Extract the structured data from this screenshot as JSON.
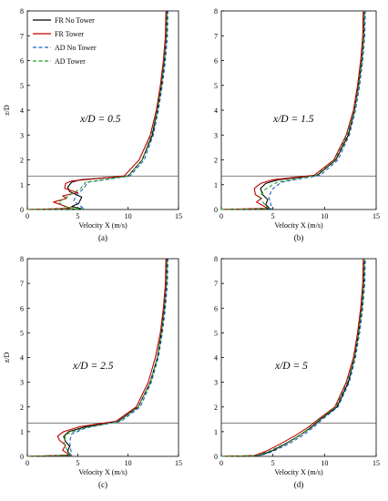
{
  "chart_data": [
    {
      "type": "line",
      "panel_label": "(a)",
      "annotation": "x/D = 0.5",
      "xlabel": "Velocity X (m/s)",
      "ylabel": "z/D",
      "xlim": [
        0,
        15
      ],
      "ylim": [
        0,
        8
      ],
      "xticks": [
        "0",
        "5",
        "10",
        "15"
      ],
      "yticks": [
        "0",
        "1",
        "2",
        "3",
        "4",
        "5",
        "6",
        "7",
        "8"
      ],
      "reference_line": {
        "y": 1.35
      },
      "legend": {
        "position": "top-left",
        "entries": [
          "FR No Tower",
          "FR Tower",
          "AD No Tower",
          "AD Tower"
        ]
      },
      "series": [
        {
          "name": "FR No Tower",
          "color": "#000000",
          "dash": "solid",
          "x": [
            0.0,
            5.5,
            4.4,
            5.1,
            5.4,
            4.2,
            4.0,
            4.4,
            5.3,
            10.0,
            11.4,
            12.4,
            12.9,
            13.3,
            13.6,
            13.8,
            13.85
          ],
          "y": [
            0.0,
            0.02,
            0.12,
            0.25,
            0.5,
            0.72,
            0.9,
            1.1,
            1.2,
            1.35,
            2.0,
            3.0,
            4.0,
            5.0,
            6.0,
            7.0,
            8.0
          ]
        },
        {
          "name": "FR Tower",
          "color": "#c00000",
          "dash": "solid",
          "x": [
            0.0,
            4.3,
            2.6,
            3.9,
            3.5,
            5.0,
            3.7,
            3.8,
            4.4,
            9.6,
            11.1,
            12.2,
            12.8,
            13.2,
            13.5,
            13.7,
            13.75
          ],
          "y": [
            0.0,
            0.05,
            0.3,
            0.45,
            0.55,
            0.68,
            0.85,
            1.05,
            1.15,
            1.35,
            2.0,
            3.0,
            4.0,
            5.0,
            6.0,
            7.0,
            8.0
          ]
        },
        {
          "name": "AD No Tower",
          "color": "#1f5fbf",
          "dash": "dashed",
          "x": [
            0.0,
            5.7,
            5.2,
            4.6,
            4.9,
            5.6,
            6.0,
            10.2,
            11.6,
            12.5,
            13.0,
            13.4,
            13.7,
            13.9,
            13.95
          ],
          "y": [
            0.0,
            0.02,
            0.15,
            0.35,
            0.6,
            0.85,
            1.1,
            1.35,
            2.0,
            3.0,
            4.0,
            5.0,
            6.0,
            7.0,
            8.0
          ]
        },
        {
          "name": "AD Tower",
          "color": "#22a022",
          "dash": "dashed",
          "x": [
            0.0,
            5.5,
            3.6,
            3.1,
            4.1,
            5.3,
            5.8,
            10.0,
            11.4,
            12.3,
            12.9,
            13.3,
            13.6,
            13.8,
            13.85
          ],
          "y": [
            0.0,
            0.02,
            0.12,
            0.3,
            0.55,
            0.85,
            1.1,
            1.35,
            2.0,
            3.0,
            4.0,
            5.0,
            6.0,
            7.0,
            8.0
          ]
        }
      ]
    },
    {
      "type": "line",
      "panel_label": "(b)",
      "annotation": "x/D = 1.5",
      "xlabel": "Velocity X (m/s)",
      "ylabel": "",
      "xlim": [
        0,
        15
      ],
      "ylim": [
        0,
        8
      ],
      "xticks": [
        "0",
        "5",
        "10",
        "15"
      ],
      "yticks": [
        "0",
        "1",
        "2",
        "3",
        "4",
        "5",
        "6",
        "7",
        "8"
      ],
      "reference_line": {
        "y": 1.35
      },
      "legend": null,
      "series": [
        {
          "name": "FR No Tower",
          "color": "#000000",
          "dash": "solid",
          "x": [
            0.0,
            4.7,
            4.3,
            4.5,
            4.0,
            3.8,
            4.3,
            5.5,
            9.3,
            11.1,
            12.3,
            12.9,
            13.3,
            13.6,
            13.8,
            13.85
          ],
          "y": [
            0.0,
            0.03,
            0.2,
            0.4,
            0.6,
            0.85,
            1.05,
            1.2,
            1.38,
            2.0,
            3.0,
            4.0,
            5.0,
            6.0,
            7.0,
            8.0
          ]
        },
        {
          "name": "FR Tower",
          "color": "#c00000",
          "dash": "solid",
          "x": [
            0.0,
            4.5,
            3.4,
            3.9,
            3.3,
            3.2,
            3.8,
            5.0,
            9.0,
            10.9,
            12.1,
            12.8,
            13.2,
            13.5,
            13.7,
            13.75
          ],
          "y": [
            0.0,
            0.05,
            0.3,
            0.45,
            0.6,
            0.85,
            1.05,
            1.2,
            1.38,
            2.0,
            3.0,
            4.0,
            5.0,
            6.0,
            7.0,
            8.0
          ]
        },
        {
          "name": "AD No Tower",
          "color": "#1f5fbf",
          "dash": "dashed",
          "x": [
            0.0,
            4.9,
            4.8,
            4.6,
            4.9,
            5.8,
            9.6,
            11.3,
            12.4,
            13.0,
            13.4,
            13.7,
            13.9,
            13.95
          ],
          "y": [
            0.0,
            0.03,
            0.2,
            0.5,
            0.8,
            1.1,
            1.38,
            2.0,
            3.0,
            4.0,
            5.0,
            6.0,
            7.0,
            8.0
          ]
        },
        {
          "name": "AD Tower",
          "color": "#22a022",
          "dash": "dashed",
          "x": [
            0.0,
            4.6,
            4.2,
            3.7,
            4.2,
            5.4,
            9.2,
            11.0,
            12.2,
            12.9,
            13.3,
            13.6,
            13.8,
            13.85
          ],
          "y": [
            0.0,
            0.03,
            0.2,
            0.5,
            0.8,
            1.1,
            1.38,
            2.0,
            3.0,
            4.0,
            5.0,
            6.0,
            7.0,
            8.0
          ]
        }
      ]
    },
    {
      "type": "line",
      "panel_label": "(c)",
      "annotation": "x/D = 2.5",
      "xlabel": "Velocity X (m/s)",
      "ylabel": "z/D",
      "xlim": [
        0,
        15
      ],
      "ylim": [
        0,
        8
      ],
      "xticks": [
        "0",
        "5",
        "10",
        "15"
      ],
      "yticks": [
        "0",
        "1",
        "2",
        "3",
        "4",
        "5",
        "6",
        "7",
        "8"
      ],
      "reference_line": {
        "y": 1.35
      },
      "legend": null,
      "series": [
        {
          "name": "FR No Tower",
          "color": "#000000",
          "dash": "solid",
          "x": [
            0.0,
            4.3,
            4.0,
            4.2,
            3.8,
            3.6,
            4.1,
            5.8,
            9.0,
            11.0,
            12.2,
            12.9,
            13.3,
            13.6,
            13.8,
            13.85
          ],
          "y": [
            0.0,
            0.05,
            0.2,
            0.4,
            0.6,
            0.8,
            1.0,
            1.2,
            1.42,
            2.0,
            3.0,
            4.0,
            5.0,
            6.0,
            7.0,
            8.0
          ]
        },
        {
          "name": "FR Tower",
          "color": "#c00000",
          "dash": "solid",
          "x": [
            0.0,
            4.2,
            3.5,
            3.8,
            3.2,
            3.0,
            3.6,
            5.2,
            8.8,
            10.8,
            12.0,
            12.7,
            13.2,
            13.5,
            13.7,
            13.75
          ],
          "y": [
            0.0,
            0.05,
            0.25,
            0.45,
            0.65,
            0.82,
            1.0,
            1.2,
            1.42,
            2.0,
            3.0,
            4.0,
            5.0,
            6.0,
            7.0,
            8.0
          ]
        },
        {
          "name": "AD No Tower",
          "color": "#1f5fbf",
          "dash": "dashed",
          "x": [
            0.0,
            4.4,
            4.3,
            4.2,
            4.4,
            5.8,
            9.3,
            11.2,
            12.3,
            13.0,
            13.4,
            13.7,
            13.9,
            13.95
          ],
          "y": [
            0.0,
            0.05,
            0.3,
            0.6,
            0.9,
            1.15,
            1.42,
            2.0,
            3.0,
            4.0,
            5.0,
            6.0,
            7.0,
            8.0
          ]
        },
        {
          "name": "AD Tower",
          "color": "#22a022",
          "dash": "dashed",
          "x": [
            0.0,
            4.2,
            3.9,
            3.6,
            3.9,
            5.6,
            9.1,
            11.0,
            12.2,
            12.9,
            13.3,
            13.6,
            13.8,
            13.85
          ],
          "y": [
            0.0,
            0.05,
            0.3,
            0.6,
            0.9,
            1.15,
            1.42,
            2.0,
            3.0,
            4.0,
            5.0,
            6.0,
            7.0,
            8.0
          ]
        }
      ]
    },
    {
      "type": "line",
      "panel_label": "(d)",
      "annotation": "x/D = 5",
      "xlabel": "Velocity X (m/s)",
      "ylabel": "",
      "xlim": [
        0,
        15
      ],
      "ylim": [
        0,
        8
      ],
      "xticks": [
        "0",
        "5",
        "10",
        "15"
      ],
      "yticks": [
        "0",
        "1",
        "2",
        "3",
        "4",
        "5",
        "6",
        "7",
        "8"
      ],
      "reference_line": {
        "y": 1.35
      },
      "legend": null,
      "series": [
        {
          "name": "FR No Tower",
          "color": "#000000",
          "dash": "solid",
          "x": [
            0.0,
            3.6,
            4.8,
            6.2,
            7.6,
            8.8,
            9.6,
            11.2,
            12.3,
            12.9,
            13.3,
            13.6,
            13.8,
            13.85
          ],
          "y": [
            0.0,
            0.03,
            0.2,
            0.5,
            0.85,
            1.2,
            1.5,
            2.0,
            3.0,
            4.0,
            5.0,
            6.0,
            7.0,
            8.0
          ]
        },
        {
          "name": "FR Tower",
          "color": "#c00000",
          "dash": "solid",
          "x": [
            0.0,
            3.2,
            4.3,
            5.7,
            7.2,
            8.5,
            9.4,
            11.0,
            12.1,
            12.8,
            13.2,
            13.5,
            13.7,
            13.75
          ],
          "y": [
            0.0,
            0.03,
            0.2,
            0.5,
            0.85,
            1.2,
            1.5,
            2.0,
            3.0,
            4.0,
            5.0,
            6.0,
            7.0,
            8.0
          ]
        },
        {
          "name": "AD No Tower",
          "color": "#1f5fbf",
          "dash": "dashed",
          "x": [
            0.0,
            3.8,
            5.0,
            6.5,
            7.9,
            9.0,
            9.8,
            11.3,
            12.4,
            13.0,
            13.4,
            13.7,
            13.9,
            13.95
          ],
          "y": [
            0.0,
            0.03,
            0.2,
            0.5,
            0.85,
            1.2,
            1.5,
            2.0,
            3.0,
            4.0,
            5.0,
            6.0,
            7.0,
            8.0
          ]
        },
        {
          "name": "AD Tower",
          "color": "#22a022",
          "dash": "dashed",
          "x": [
            0.0,
            3.4,
            4.6,
            6.1,
            7.6,
            8.7,
            9.5,
            11.1,
            12.2,
            12.9,
            13.3,
            13.6,
            13.8,
            13.85
          ],
          "y": [
            0.0,
            0.03,
            0.2,
            0.5,
            0.85,
            1.2,
            1.5,
            2.0,
            3.0,
            4.0,
            5.0,
            6.0,
            7.0,
            8.0
          ]
        }
      ]
    }
  ]
}
